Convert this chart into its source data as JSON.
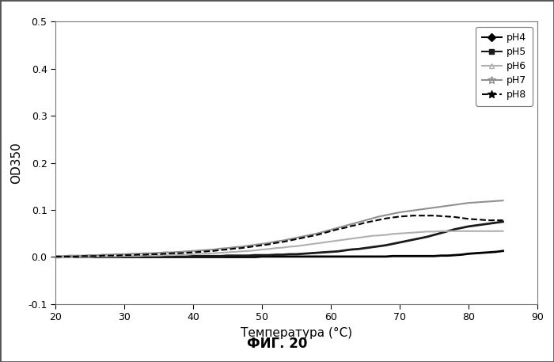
{
  "xlabel": "Температура (°C)",
  "ylabel": "OD350",
  "caption": "ФИГ. 20",
  "xlim": [
    20,
    90
  ],
  "ylim": [
    -0.1,
    0.5
  ],
  "xticks": [
    20,
    30,
    40,
    50,
    60,
    70,
    80,
    90
  ],
  "yticks": [
    -0.1,
    0.0,
    0.1,
    0.2,
    0.3,
    0.4,
    0.5
  ],
  "x": [
    20,
    21,
    22,
    23,
    24,
    25,
    26,
    27,
    28,
    29,
    30,
    31,
    32,
    33,
    34,
    35,
    36,
    37,
    38,
    39,
    40,
    41,
    42,
    43,
    44,
    45,
    46,
    47,
    48,
    49,
    50,
    51,
    52,
    53,
    54,
    55,
    56,
    57,
    58,
    59,
    60,
    61,
    62,
    63,
    64,
    65,
    66,
    67,
    68,
    69,
    70,
    71,
    72,
    73,
    74,
    75,
    76,
    77,
    78,
    79,
    80,
    81,
    82,
    83,
    84,
    85
  ],
  "pH4_y": [
    0.0,
    0.0,
    0.0,
    0.0,
    0.0,
    0.0,
    0.0,
    0.0,
    0.0,
    0.0,
    0.0,
    0.0,
    0.0,
    0.0,
    0.0,
    0.0,
    0.0,
    0.0,
    0.0,
    0.0,
    0.0,
    0.0,
    0.0,
    0.0,
    0.0,
    0.0,
    0.0,
    0.0,
    0.0,
    0.0,
    0.001,
    0.001,
    0.001,
    0.001,
    0.001,
    0.001,
    0.001,
    0.001,
    0.001,
    0.001,
    0.001,
    0.001,
    0.001,
    0.001,
    0.001,
    0.001,
    0.001,
    0.001,
    0.001,
    0.002,
    0.002,
    0.002,
    0.002,
    0.002,
    0.002,
    0.002,
    0.003,
    0.003,
    0.004,
    0.005,
    0.007,
    0.008,
    0.009,
    0.01,
    0.011,
    0.013
  ],
  "pH5_y": [
    0.0,
    0.0,
    0.0,
    0.0,
    0.0,
    0.0,
    0.0,
    0.0,
    0.0,
    0.0,
    0.0,
    0.0,
    0.0,
    0.0,
    0.0,
    0.0,
    0.001,
    0.001,
    0.001,
    0.001,
    0.002,
    0.002,
    0.002,
    0.002,
    0.002,
    0.003,
    0.003,
    0.003,
    0.003,
    0.004,
    0.004,
    0.004,
    0.005,
    0.005,
    0.006,
    0.006,
    0.007,
    0.008,
    0.009,
    0.01,
    0.011,
    0.012,
    0.014,
    0.016,
    0.017,
    0.019,
    0.021,
    0.023,
    0.025,
    0.028,
    0.031,
    0.034,
    0.037,
    0.04,
    0.043,
    0.047,
    0.051,
    0.055,
    0.059,
    0.062,
    0.065,
    0.067,
    0.069,
    0.071,
    0.073,
    0.075
  ],
  "pH6_y": [
    -0.002,
    -0.001,
    -0.001,
    0.0,
    0.0,
    0.0,
    0.001,
    0.001,
    0.001,
    0.001,
    0.002,
    0.002,
    0.002,
    0.003,
    0.003,
    0.003,
    0.004,
    0.004,
    0.005,
    0.005,
    0.006,
    0.007,
    0.007,
    0.008,
    0.009,
    0.01,
    0.011,
    0.012,
    0.013,
    0.014,
    0.016,
    0.017,
    0.019,
    0.02,
    0.022,
    0.023,
    0.025,
    0.027,
    0.029,
    0.031,
    0.033,
    0.035,
    0.037,
    0.039,
    0.041,
    0.043,
    0.045,
    0.046,
    0.047,
    0.049,
    0.05,
    0.051,
    0.052,
    0.053,
    0.054,
    0.054,
    0.055,
    0.055,
    0.055,
    0.055,
    0.055,
    0.055,
    0.055,
    0.055,
    0.055,
    0.055
  ],
  "pH7_y": [
    0.002,
    0.002,
    0.003,
    0.003,
    0.003,
    0.004,
    0.004,
    0.005,
    0.005,
    0.006,
    0.006,
    0.007,
    0.007,
    0.008,
    0.008,
    0.009,
    0.01,
    0.01,
    0.011,
    0.012,
    0.013,
    0.014,
    0.015,
    0.016,
    0.018,
    0.019,
    0.021,
    0.022,
    0.024,
    0.026,
    0.028,
    0.03,
    0.033,
    0.035,
    0.038,
    0.041,
    0.044,
    0.047,
    0.05,
    0.054,
    0.058,
    0.062,
    0.066,
    0.07,
    0.074,
    0.078,
    0.082,
    0.086,
    0.089,
    0.092,
    0.095,
    0.097,
    0.099,
    0.101,
    0.103,
    0.105,
    0.107,
    0.109,
    0.111,
    0.113,
    0.115,
    0.116,
    0.117,
    0.118,
    0.119,
    0.12
  ],
  "pH8_y": [
    0.001,
    0.001,
    0.001,
    0.001,
    0.002,
    0.002,
    0.002,
    0.003,
    0.003,
    0.003,
    0.004,
    0.004,
    0.005,
    0.005,
    0.006,
    0.006,
    0.007,
    0.008,
    0.008,
    0.009,
    0.01,
    0.011,
    0.012,
    0.013,
    0.015,
    0.016,
    0.018,
    0.019,
    0.021,
    0.023,
    0.025,
    0.027,
    0.03,
    0.032,
    0.035,
    0.038,
    0.041,
    0.044,
    0.047,
    0.051,
    0.055,
    0.059,
    0.062,
    0.066,
    0.069,
    0.073,
    0.076,
    0.079,
    0.082,
    0.084,
    0.086,
    0.087,
    0.088,
    0.088,
    0.088,
    0.088,
    0.087,
    0.086,
    0.085,
    0.083,
    0.081,
    0.08,
    0.079,
    0.078,
    0.078,
    0.078
  ],
  "series": [
    "pH4",
    "pH5",
    "pH6",
    "pH7",
    "pH8"
  ],
  "colors": {
    "pH4": "#000000",
    "pH5": "#1a1a1a",
    "pH6": "#b0b0b0",
    "pH7": "#909090",
    "pH8": "#000000"
  },
  "markers": {
    "pH4": "D",
    "pH5": "s",
    "pH6": "^",
    "pH7": "*",
    "pH8": "*"
  },
  "linestyles": {
    "pH4": "-",
    "pH5": "-",
    "pH6": "-",
    "pH7": "-",
    "pH8": "--"
  },
  "linewidths": {
    "pH4": 2.0,
    "pH5": 2.0,
    "pH6": 1.5,
    "pH7": 1.5,
    "pH8": 1.5
  },
  "background_color": "#ffffff",
  "border_color": "#555555",
  "xlabel_superscript": "0"
}
